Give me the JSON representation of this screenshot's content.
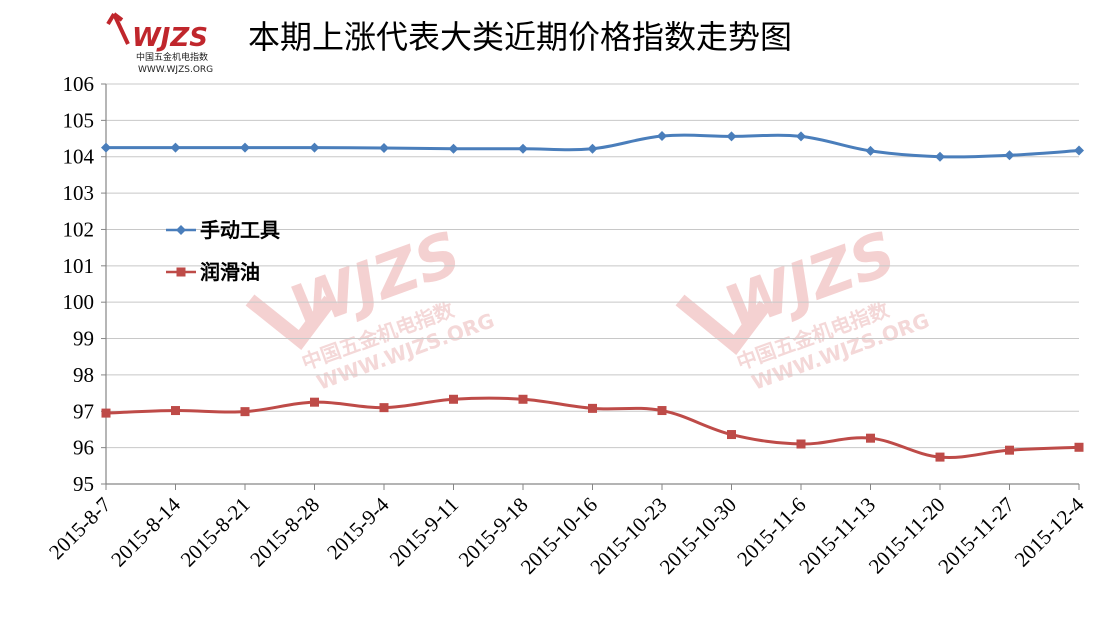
{
  "logo": {
    "name": "WJZS",
    "cn": "中国五金机电指数",
    "url": "WWW.WJZS.ORG"
  },
  "chart_data": {
    "type": "line",
    "title": "本期上涨代表大类近期价格指数走势图",
    "categories": [
      "2015-8-7",
      "2015-8-14",
      "2015-8-21",
      "2015-8-28",
      "2015-9-4",
      "2015-9-11",
      "2015-9-18",
      "2015-10-16",
      "2015-10-23",
      "2015-10-30",
      "2015-11-6",
      "2015-11-13",
      "2015-11-20",
      "2015-11-27",
      "2015-12-4"
    ],
    "series": [
      {
        "name": "手动工具",
        "color": "#4a7ebb",
        "marker": "diamond",
        "values": [
          104.25,
          104.25,
          104.25,
          104.25,
          104.24,
          104.22,
          104.22,
          104.22,
          104.57,
          104.56,
          104.56,
          104.16,
          104.0,
          104.04,
          104.17
        ]
      },
      {
        "name": "润滑油",
        "color": "#be4b48",
        "marker": "square",
        "values": [
          96.95,
          97.02,
          96.99,
          97.25,
          97.1,
          97.33,
          97.33,
          97.08,
          97.02,
          96.36,
          96.1,
          96.26,
          95.74,
          95.93,
          96.01
        ]
      }
    ],
    "yticks": [
      95,
      96,
      97,
      98,
      99,
      100,
      101,
      102,
      103,
      104,
      105,
      106
    ],
    "ylim": [
      95,
      106
    ],
    "grid": true,
    "legend_position": "left-inside"
  }
}
